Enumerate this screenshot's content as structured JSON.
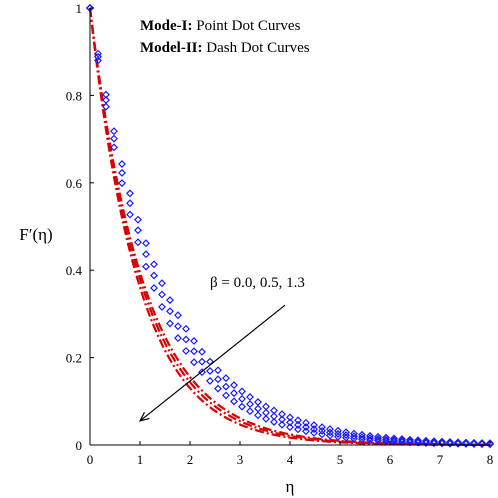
{
  "chart_data": {
    "type": "line",
    "title": "",
    "xlabel": "η",
    "ylabel": "F′(η)",
    "xlim": [
      0,
      8
    ],
    "ylim": [
      0,
      1
    ],
    "x_ticks": [
      "0",
      "1",
      "2",
      "3",
      "4",
      "5",
      "6",
      "7",
      "8"
    ],
    "y_ticks": [
      "0",
      "0.2",
      "0.4",
      "0.6",
      "0.8",
      "1"
    ],
    "grid": false,
    "legend": {
      "position": "top-center",
      "lines": [
        {
          "bold": "Mode-I:",
          "text": " Point Dot Curves"
        },
        {
          "bold": "Model-II:",
          "text": " Dash Dot Curves"
        }
      ]
    },
    "annotation": {
      "text": "β = 0.0, 0.5, 1.3",
      "arrow_from": [
        3.9,
        0.32
      ],
      "arrow_to": [
        1.0,
        0.055
      ]
    },
    "series": [
      {
        "style": "dash-dot",
        "color": "#dd0000",
        "decay_rate": 1.02
      },
      {
        "style": "dash-dot",
        "color": "#dd0000",
        "decay_rate": 0.97
      },
      {
        "style": "dash-dot",
        "color": "#dd0000",
        "decay_rate": 0.93
      },
      {
        "style": "point-dot",
        "color": "#1a1aff",
        "decay_rate": 0.8,
        "x": [
          0,
          0.16,
          0.32,
          0.48,
          0.64,
          0.8,
          0.96,
          1.12,
          1.28,
          1.44,
          1.6,
          1.76,
          1.92,
          2.08,
          2.24,
          2.4,
          2.56,
          2.72,
          2.88,
          3.04,
          3.2,
          3.36,
          3.52,
          3.68,
          3.84,
          4.0,
          4.16,
          4.32,
          4.48,
          4.64,
          4.8,
          4.96,
          5.12,
          5.28,
          5.44,
          5.6,
          5.76,
          5.92,
          6.08,
          6.24,
          6.4,
          6.56,
          6.72,
          6.88,
          7.04,
          7.2,
          7.36,
          7.52,
          7.68,
          7.84,
          8.0
        ]
      },
      {
        "style": "point-dot",
        "color": "#1a1aff",
        "decay_rate": 0.74,
        "x": [
          0,
          0.16,
          0.32,
          0.48,
          0.64,
          0.8,
          0.96,
          1.12,
          1.28,
          1.44,
          1.6,
          1.76,
          1.92,
          2.08,
          2.24,
          2.4,
          2.56,
          2.72,
          2.88,
          3.04,
          3.2,
          3.36,
          3.52,
          3.68,
          3.84,
          4.0,
          4.16,
          4.32,
          4.48,
          4.64,
          4.8,
          4.96,
          5.12,
          5.28,
          5.44,
          5.6,
          5.76,
          5.92,
          6.08,
          6.24,
          6.4,
          6.56,
          6.72,
          6.88,
          7.04,
          7.2,
          7.36,
          7.52,
          7.68,
          7.84,
          8.0
        ]
      },
      {
        "style": "point-dot",
        "color": "#1a1aff",
        "decay_rate": 0.69,
        "x": [
          0,
          0.16,
          0.32,
          0.48,
          0.64,
          0.8,
          0.96,
          1.12,
          1.28,
          1.44,
          1.6,
          1.76,
          1.92,
          2.08,
          2.24,
          2.4,
          2.56,
          2.72,
          2.88,
          3.04,
          3.2,
          3.36,
          3.52,
          3.68,
          3.84,
          4.0,
          4.16,
          4.32,
          4.48,
          4.64,
          4.8,
          4.96,
          5.12,
          5.28,
          5.44,
          5.6,
          5.76,
          5.92,
          6.08,
          6.24,
          6.4,
          6.56,
          6.72,
          6.88,
          7.04,
          7.2,
          7.36,
          7.52,
          7.68,
          7.84,
          8.0
        ]
      }
    ]
  }
}
